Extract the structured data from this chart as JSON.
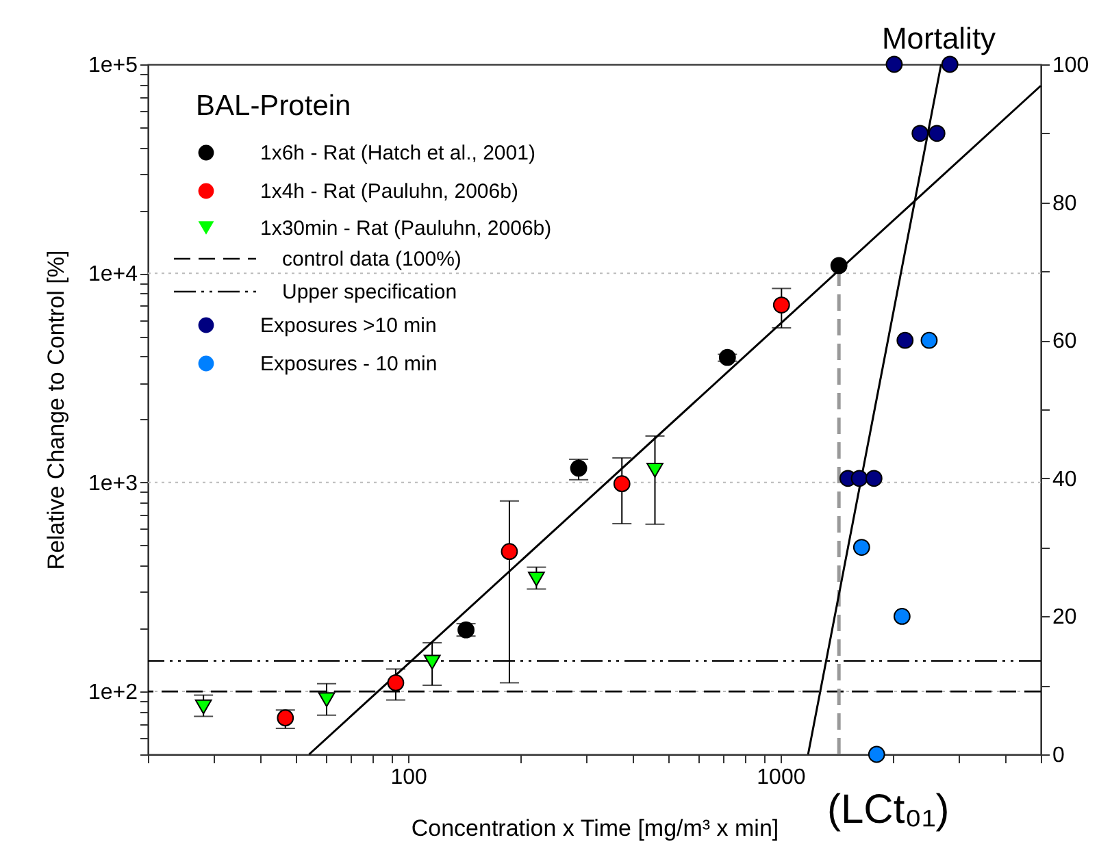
{
  "chart_data": {
    "type": "scatter",
    "xlabel": "Concentration x Time [mg/m³ x min]",
    "ylabel": "Relative Change to Control [%]",
    "y2label": "Mortality",
    "legend_title": "BAL-Protein",
    "legend": "top left",
    "log": "xy",
    "grid": "y",
    "xlim": [
      20,
      5000
    ],
    "xticks": [
      {
        "value": 20,
        "label": null
      },
      {
        "value": 30,
        "label": null
      },
      {
        "value": 40,
        "label": null
      },
      {
        "value": 50,
        "label": null
      },
      {
        "value": 60,
        "label": null
      },
      {
        "value": 70,
        "label": null
      },
      {
        "value": 80,
        "label": null
      },
      {
        "value": 90,
        "label": null
      },
      100,
      {
        "value": 200,
        "label": null
      },
      {
        "value": 300,
        "label": null
      },
      {
        "value": 400,
        "label": null
      },
      {
        "value": 500,
        "label": null
      },
      {
        "value": 600,
        "label": null
      },
      {
        "value": 700,
        "label": null
      },
      {
        "value": 800,
        "label": null
      },
      {
        "value": 900,
        "label": null
      },
      1000,
      {
        "value": 2000,
        "label": null
      },
      {
        "value": 3000,
        "label": null
      },
      {
        "value": 4000,
        "label": null
      },
      {
        "value": 5000,
        "label": null
      }
    ],
    "ylim": [
      50,
      100000
    ],
    "yticks": [
      {
        "value": 50,
        "label": null
      },
      {
        "value": 60,
        "label": null
      },
      {
        "value": 70,
        "label": null
      },
      {
        "value": 80,
        "label": null
      },
      {
        "value": 90,
        "label": null
      },
      {
        "value": 100,
        "label": "1e+2"
      },
      {
        "value": 200,
        "label": null
      },
      {
        "value": 300,
        "label": null
      },
      {
        "value": 400,
        "label": null
      },
      {
        "value": 500,
        "label": null
      },
      {
        "value": 600,
        "label": null
      },
      {
        "value": 700,
        "label": null
      },
      {
        "value": 800,
        "label": null
      },
      {
        "value": 900,
        "label": null
      },
      {
        "value": 1000,
        "label": "1e+3"
      },
      {
        "value": 2000,
        "label": null
      },
      {
        "value": 3000,
        "label": null
      },
      {
        "value": 4000,
        "label": null
      },
      {
        "value": 5000,
        "label": null
      },
      {
        "value": 6000,
        "label": null
      },
      {
        "value": 7000,
        "label": null
      },
      {
        "value": 8000,
        "label": null
      },
      {
        "value": 9000,
        "label": null
      },
      {
        "value": 10000,
        "label": "1e+4"
      },
      {
        "value": 20000,
        "label": null
      },
      {
        "value": 30000,
        "label": null
      },
      {
        "value": 40000,
        "label": null
      },
      {
        "value": 50000,
        "label": null
      },
      {
        "value": 60000,
        "label": null
      },
      {
        "value": 70000,
        "label": null
      },
      {
        "value": 80000,
        "label": null
      },
      {
        "value": 90000,
        "label": null
      },
      {
        "value": 100000,
        "label": "1e+5"
      }
    ],
    "y2lim": [
      0,
      100
    ],
    "y2ticks": [
      0,
      {
        "value": 10,
        "label": null
      },
      20,
      {
        "value": 30,
        "label": null
      },
      40,
      {
        "value": 50,
        "label": null
      },
      60,
      {
        "value": 70,
        "label": null
      },
      80,
      {
        "value": 90,
        "label": null
      },
      100
    ],
    "series": [
      {
        "name": "1x6h - Rat (Hatch et al., 2001)",
        "marker": "circle",
        "color": "#000000",
        "x": [
          143,
          287,
          720,
          1435
        ],
        "values": [
          197,
          1170,
          3960,
          10900
        ],
        "errors": [
          [
            184,
            211
          ],
          [
            1030,
            1290
          ],
          [
            3800,
            4100
          ],
          null
        ]
      },
      {
        "name": "1x4h - Rat (Pauluhn, 2006b)",
        "marker": "circle",
        "color": "#ff0000",
        "x": [
          46.8,
          92.6,
          187,
          375,
          1006
        ],
        "values": [
          74.7,
          110,
          467,
          985,
          7060
        ],
        "errors": [
          [
            66.6,
            81.5
          ],
          [
            91,
            128
          ],
          [
            110,
            815
          ],
          [
            635,
            1310
          ],
          [
            5490,
            8470
          ]
        ]
      },
      {
        "name": "1x30min - Rat (Pauluhn, 2006b)",
        "marker": "triangle-down",
        "color": "#00ff00",
        "x": [
          28.2,
          60.4,
          116,
          221,
          460
        ],
        "values": [
          84.4,
          91.3,
          138,
          345,
          1143
        ],
        "errors": [
          [
            76,
            96
          ],
          [
            77,
            109
          ],
          [
            107,
            171
          ],
          [
            309,
            393
          ],
          [
            631,
            1667
          ]
        ]
      },
      {
        "name": "Exposures >10 min",
        "marker": "circle",
        "axis": "y2",
        "color": "#000080",
        "x": [
          2020,
          2850,
          2370,
          2630,
          2160,
          1517,
          1628,
          1782
        ],
        "values": [
          100,
          100,
          90,
          90,
          60,
          40,
          40,
          40
        ]
      },
      {
        "name": "Exposures - 10 min",
        "marker": "circle",
        "axis": "y2",
        "color": "#0080ff",
        "x": [
          2507,
          1651,
          2120,
          1812
        ],
        "values": [
          60,
          30,
          20,
          0
        ]
      },
      {
        "type": "line",
        "color": "#000000",
        "line_style": "solid",
        "x": [
          54.2,
          5000
        ],
        "values": [
          50,
          79000
        ]
      },
      {
        "type": "line",
        "axis": "y2",
        "color": "#000000",
        "line_style": "solid",
        "x": [
          1186,
          2700
        ],
        "values": [
          0,
          100
        ]
      },
      {
        "type": "line",
        "color": "#999999",
        "line_style": "dashed",
        "x": [
          1435,
          1435
        ],
        "values": [
          50,
          10900
        ]
      }
    ],
    "ref_lines": [
      {
        "axis": "y",
        "value": 100,
        "label": "control data (100%)",
        "line_style": "dashed",
        "color": "#000000"
      },
      {
        "axis": "y",
        "value": 140,
        "label": "Upper specification",
        "line_style": "dashdot",
        "color": "#000000"
      }
    ],
    "annotations": [
      "(LCt₀₁)"
    ]
  }
}
